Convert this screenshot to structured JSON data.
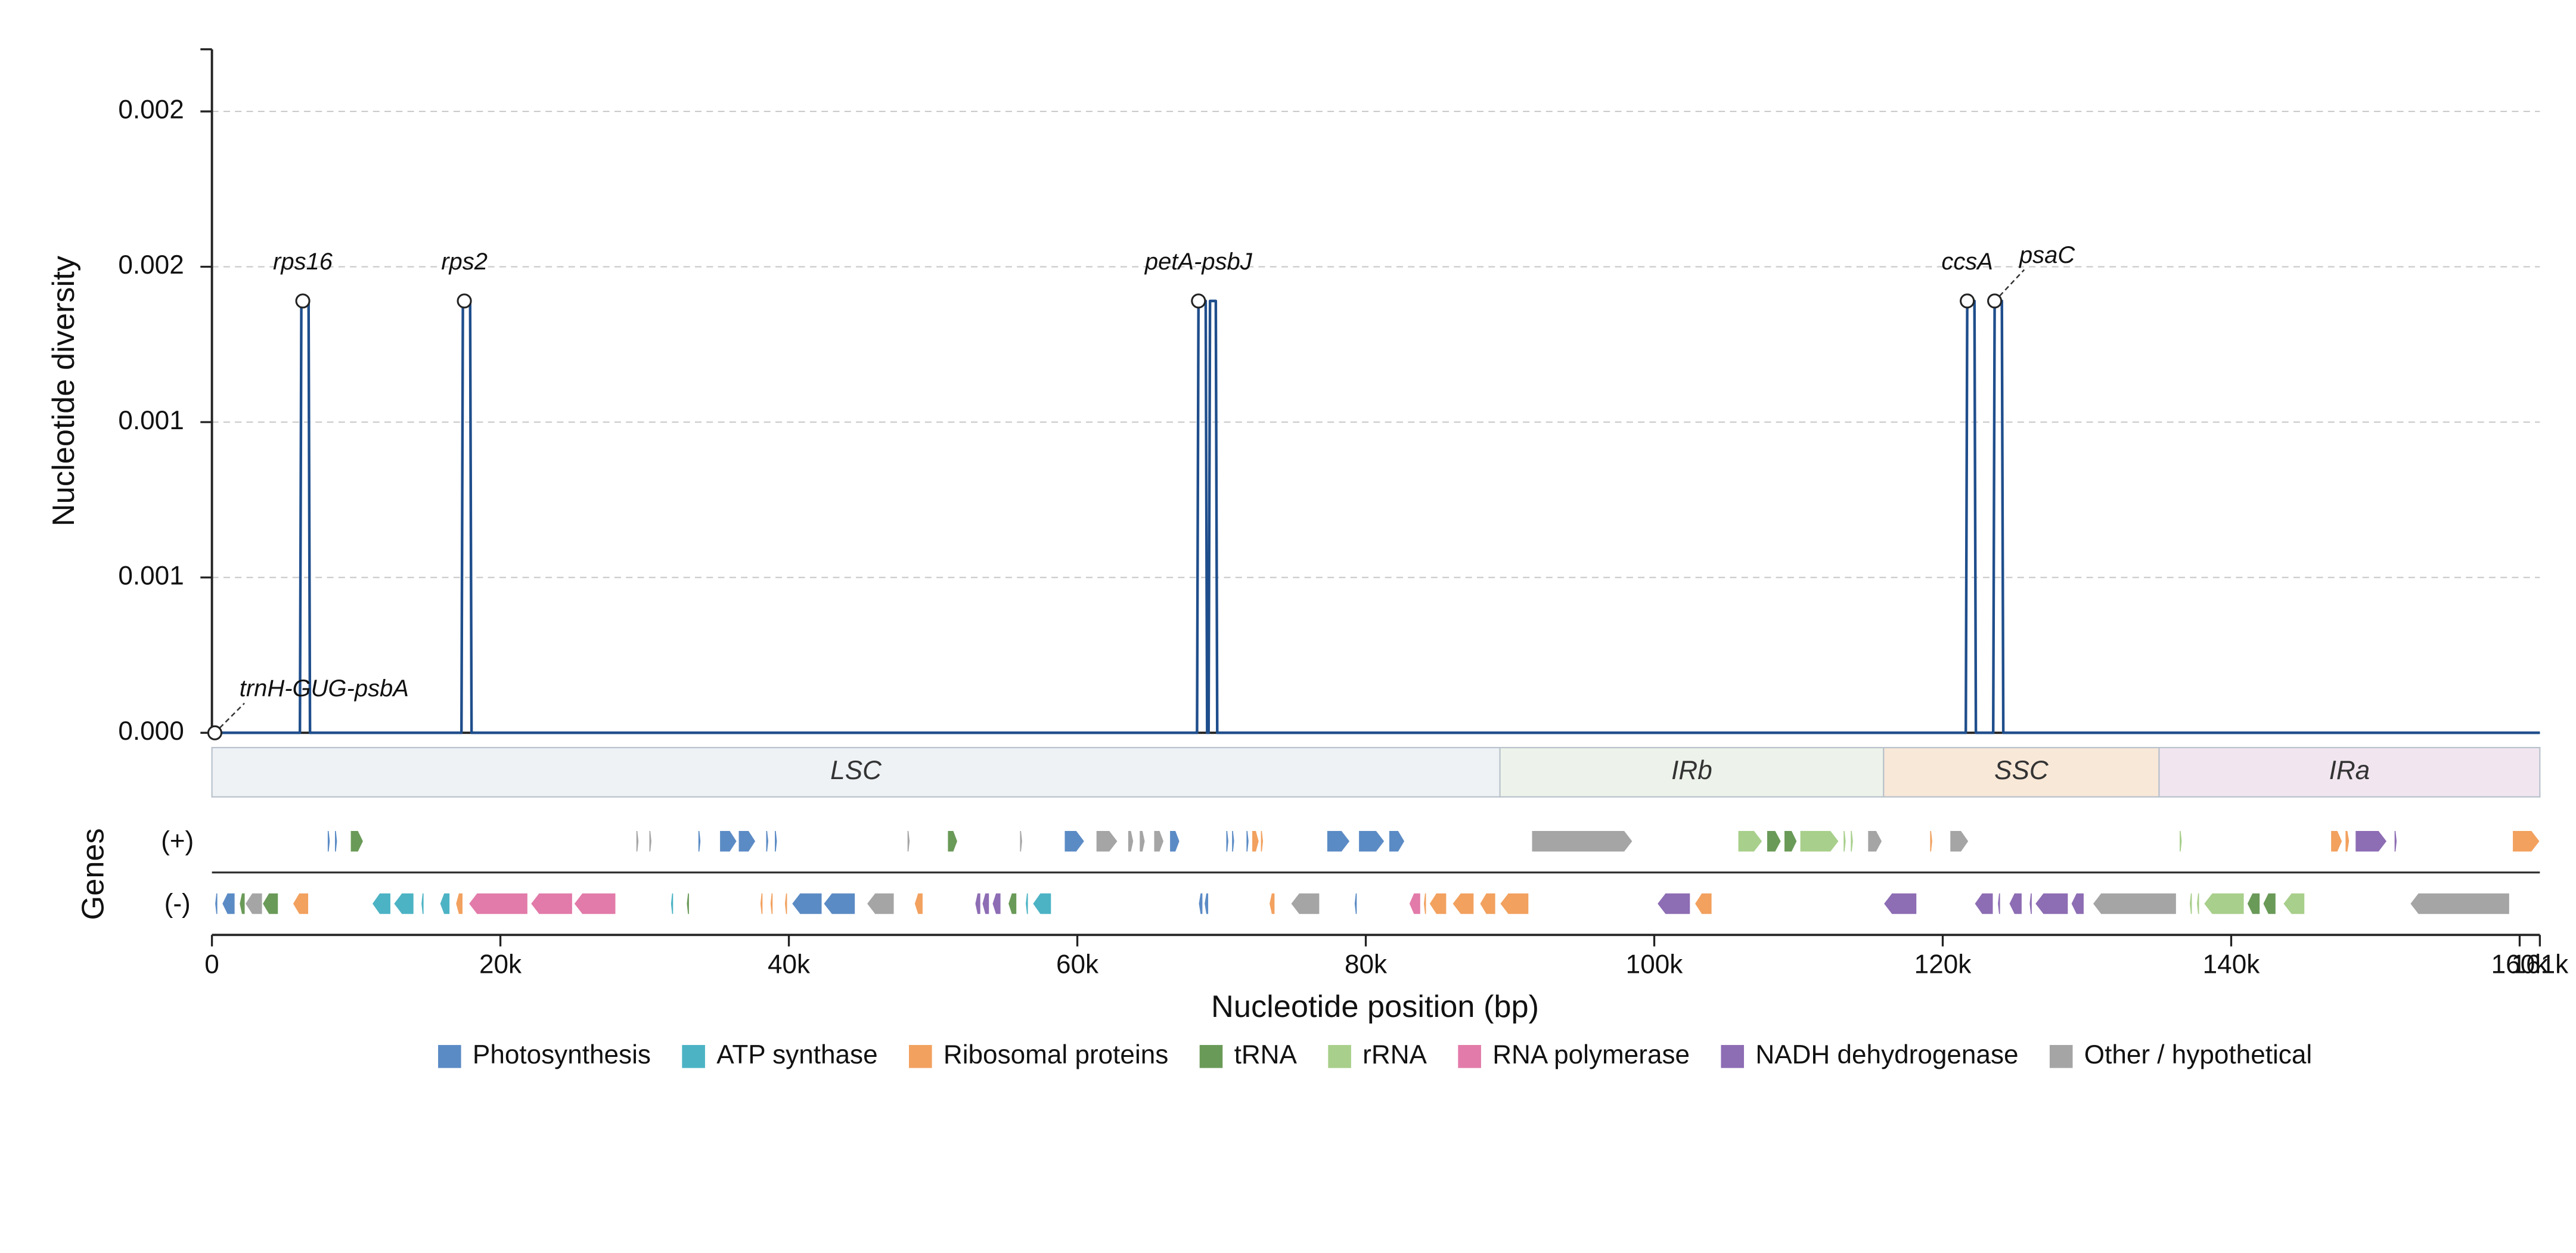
{
  "chart_data": {
    "type": "line",
    "y_label": "Nucleotide diversity",
    "x_label": "Nucleotide position (bp)",
    "gene_label": "Genes",
    "strand_labels": [
      "(+)",
      "(-)"
    ],
    "xlim": [
      0,
      161400
    ],
    "ylim": [
      0,
      0.0022
    ],
    "xticks": [
      0,
      {
        "value": 20000,
        "label": "20k"
      },
      {
        "value": 40000,
        "label": "40k"
      },
      {
        "value": 60000,
        "label": "60k"
      },
      {
        "value": 80000,
        "label": "80k"
      },
      {
        "value": 100000,
        "label": "100k"
      },
      {
        "value": 120000,
        "label": "120k"
      },
      {
        "value": 140000,
        "label": "140k"
      },
      {
        "value": 160000,
        "label": "160k"
      },
      {
        "value": 161400,
        "label": "161k"
      }
    ],
    "yticks": [
      {
        "value": 0,
        "label": "0.000"
      },
      {
        "value": 0.0005,
        "label": "0.001"
      },
      {
        "value": 0.001,
        "label": "0.001"
      },
      {
        "value": 0.0015,
        "label": "0.002"
      },
      {
        "value": 0.002,
        "label": "0.002"
      }
    ],
    "grid": true,
    "line_color": "#1f4e8c",
    "x": [
      0,
      6100,
      6200,
      6700,
      6800,
      17300,
      17400,
      17900,
      18000,
      68300,
      68400,
      68900,
      69000,
      69100,
      69200,
      69600,
      69700,
      121600,
      121700,
      122200,
      122300,
      123500,
      123600,
      124100,
      124200,
      161400
    ],
    "values": [
      0,
      0,
      0.00139,
      0.00139,
      0,
      0,
      0.00139,
      0.00139,
      0,
      0,
      0.00139,
      0.00139,
      0,
      0,
      0.00139,
      0.00139,
      0,
      0,
      0.00139,
      0.00139,
      0,
      0,
      0.00139,
      0.00139,
      0,
      0
    ],
    "annotations": [
      {
        "label": "trnH-GUG-psbA",
        "x": 200,
        "value": 0
      },
      {
        "label": "rps16",
        "x": 6300,
        "value": 0.00139
      },
      {
        "label": "rps2",
        "x": 17500,
        "value": 0.00139
      },
      {
        "label": "petA-psbJ",
        "x": 68400,
        "value": 0.00139
      },
      {
        "label": "ccsA",
        "x": 121700,
        "value": 0.00139
      },
      {
        "label": "psaC",
        "x": 123600,
        "value": 0.00139
      }
    ],
    "regions": [
      {
        "name": "LSC",
        "start": 0,
        "end": 89300,
        "color": "#eef2f5"
      },
      {
        "name": "IRb",
        "start": 89300,
        "end": 115900,
        "color": "#edf3ea"
      },
      {
        "name": "SSC",
        "start": 115900,
        "end": 135000,
        "color": "#f8e8d8"
      },
      {
        "name": "IRa",
        "start": 135000,
        "end": 161400,
        "color": "#f1e6f0"
      }
    ],
    "gene_categories": [
      {
        "name": "Photosynthesis",
        "color": "#5b8bc5",
        "plus": [
          [
            8000,
            8200
          ],
          [
            8500,
            8700
          ],
          [
            33700,
            33900
          ],
          [
            35200,
            36400
          ],
          [
            36500,
            37700
          ],
          [
            38400,
            38600
          ],
          [
            39000,
            39200
          ],
          [
            59100,
            60500
          ],
          [
            66400,
            67100
          ],
          [
            70300,
            70500
          ],
          [
            70700,
            70900
          ],
          [
            71700,
            71900
          ],
          [
            77300,
            78900
          ],
          [
            79500,
            81300
          ],
          [
            81600,
            82700
          ]
        ],
        "minus": [
          [
            200,
            400
          ],
          [
            700,
            1600
          ],
          [
            40200,
            42300
          ],
          [
            42400,
            44600
          ],
          [
            68400,
            68700
          ],
          [
            68800,
            69100
          ],
          [
            79200,
            79400
          ]
        ]
      },
      {
        "name": "ATP synthase",
        "color": "#4cb3c4",
        "plus": [],
        "minus": [
          [
            11100,
            12400
          ],
          [
            12600,
            14000
          ],
          [
            14500,
            14700
          ],
          [
            15800,
            16500
          ],
          [
            31800,
            32000
          ],
          [
            56400,
            56600
          ],
          [
            56900,
            58200
          ]
        ]
      },
      {
        "name": "Ribosomal proteins",
        "color": "#f2a15f",
        "plus": [
          [
            72100,
            72600
          ],
          [
            72700,
            72900
          ],
          [
            119100,
            119300
          ],
          [
            146900,
            147700
          ],
          [
            147900,
            148200
          ],
          [
            159500,
            161400
          ]
        ],
        "minus": [
          [
            5600,
            6700
          ],
          [
            16900,
            17400
          ],
          [
            38000,
            38200
          ],
          [
            38700,
            38900
          ],
          [
            39700,
            39900
          ],
          [
            48700,
            49300
          ],
          [
            73300,
            73700
          ],
          [
            84000,
            84200
          ],
          [
            84400,
            85600
          ],
          [
            86000,
            87500
          ],
          [
            87900,
            89000
          ],
          [
            89300,
            91300
          ],
          [
            102800,
            104000
          ]
        ]
      },
      {
        "name": "tRNA",
        "color": "#6a9a58",
        "plus": [
          [
            9600,
            10500
          ],
          [
            51000,
            51700
          ],
          [
            107800,
            108800
          ],
          [
            109000,
            109900
          ]
        ],
        "minus": [
          [
            1900,
            2300
          ],
          [
            3500,
            4600
          ],
          [
            32900,
            33100
          ],
          [
            55200,
            55800
          ],
          [
            141100,
            142000
          ],
          [
            142200,
            143100
          ]
        ]
      },
      {
        "name": "rRNA",
        "color": "#a8cf8b",
        "plus": [
          [
            105800,
            107500
          ],
          [
            110100,
            112800
          ],
          [
            113100,
            113300
          ],
          [
            113600,
            113800
          ],
          [
            136400,
            136600
          ]
        ],
        "minus": [
          [
            137100,
            137300
          ],
          [
            137600,
            137800
          ],
          [
            138100,
            140900
          ],
          [
            143600,
            145100
          ]
        ]
      },
      {
        "name": "RNA polymerase",
        "color": "#e27ba9",
        "plus": [],
        "minus": [
          [
            17800,
            21900
          ],
          [
            22100,
            25000
          ],
          [
            25100,
            28000
          ],
          [
            83000,
            83800
          ]
        ]
      },
      {
        "name": "NADH dehydrogenase",
        "color": "#8d6db4",
        "plus": [
          [
            148600,
            150800
          ],
          [
            151300,
            151500
          ]
        ],
        "minus": [
          [
            52900,
            53300
          ],
          [
            53400,
            53900
          ],
          [
            54100,
            54700
          ],
          [
            100200,
            102500
          ],
          [
            115900,
            118200
          ],
          [
            122200,
            123500
          ],
          [
            123800,
            124000
          ],
          [
            124600,
            125500
          ],
          [
            126000,
            126200
          ],
          [
            126400,
            128700
          ],
          [
            128900,
            129800
          ]
        ]
      },
      {
        "name": "Other / hypothetical",
        "color": "#a5a5a5",
        "plus": [
          [
            29400,
            29600
          ],
          [
            30300,
            30500
          ],
          [
            48200,
            48400
          ],
          [
            56000,
            56200
          ],
          [
            61300,
            62800
          ],
          [
            63500,
            63900
          ],
          [
            64300,
            64700
          ],
          [
            65300,
            66000
          ],
          [
            91500,
            98500
          ],
          [
            114800,
            115800
          ],
          [
            120500,
            121800
          ]
        ],
        "minus": [
          [
            2300,
            3500
          ],
          [
            45400,
            47300
          ],
          [
            74800,
            76800
          ],
          [
            130400,
            136200
          ],
          [
            152400,
            159300
          ]
        ]
      }
    ]
  }
}
